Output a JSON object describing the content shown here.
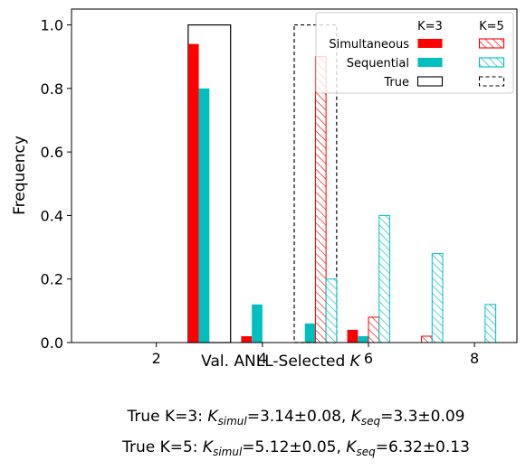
{
  "chart_data": {
    "type": "bar",
    "xlabel": "Val. ANLL-Selected",
    "xlabel_symbol": "K",
    "ylabel": "Frequency",
    "xlim": [
      0.4,
      8.8
    ],
    "ylim": [
      0,
      1.05
    ],
    "xticks": [
      2,
      4,
      6,
      8
    ],
    "yticks": [
      0.0,
      0.2,
      0.4,
      0.6,
      0.8,
      1.0
    ],
    "xtick_labels": [
      "2",
      "4",
      "6",
      "8"
    ],
    "ytick_labels": [
      "0.0",
      "0.2",
      "0.4",
      "0.6",
      "0.8",
      "1.0"
    ],
    "grid": false,
    "legend_placement": "top-right",
    "legend": {
      "col_headers": [
        "K=3",
        "K=5"
      ],
      "row_labels": [
        "Simultaneous",
        "Sequential",
        "True"
      ]
    },
    "colors": {
      "simultaneous": "#ff0000",
      "sequential": "#00bfbf",
      "true": "#000000"
    },
    "categories": [
      1,
      2,
      3,
      4,
      5,
      6,
      7,
      8
    ],
    "series": [
      {
        "name": "Simultaneous",
        "group": "K=3",
        "hatched": false,
        "values": [
          0,
          0,
          0.94,
          0.02,
          0,
          0.04,
          0,
          0
        ]
      },
      {
        "name": "Sequential",
        "group": "K=3",
        "hatched": false,
        "values": [
          0,
          0,
          0.8,
          0.12,
          0.06,
          0.02,
          0,
          0
        ]
      },
      {
        "name": "Simultaneous",
        "group": "K=5",
        "hatched": true,
        "values": [
          0,
          0,
          0,
          0,
          0.9,
          0.08,
          0.02,
          0
        ]
      },
      {
        "name": "Sequential",
        "group": "K=5",
        "hatched": true,
        "values": [
          0,
          0,
          0,
          0,
          0.2,
          0.4,
          0.28,
          0.12
        ]
      }
    ],
    "true_bars": [
      {
        "group": "K=3",
        "x": 3,
        "value": 1.0,
        "style": "solid"
      },
      {
        "group": "K=5",
        "x": 5,
        "value": 1.0,
        "style": "dashed"
      }
    ],
    "captions": [
      {
        "prefix": "True K=3: ",
        "simul_value": "=3.14±0.08, ",
        "seq_value": "=3.3±0.09"
      },
      {
        "prefix": "True K=5: ",
        "simul_value": "=5.12±0.05, ",
        "seq_value": "=6.32±0.13"
      }
    ],
    "caption_symbol": "K",
    "caption_sub_simul": "simul",
    "caption_sub_seq": "seq"
  }
}
